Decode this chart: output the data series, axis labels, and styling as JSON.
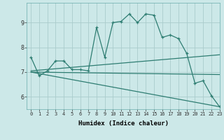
{
  "title": "",
  "xlabel": "Humidex (Indice chaleur)",
  "bg_color": "#cce8e8",
  "line_color": "#2e7d72",
  "grid_color": "#aacccc",
  "xlim": [
    -0.5,
    23
  ],
  "ylim": [
    5.5,
    9.8
  ],
  "xticks": [
    0,
    1,
    2,
    3,
    4,
    5,
    6,
    7,
    8,
    9,
    10,
    11,
    12,
    13,
    14,
    15,
    16,
    17,
    18,
    19,
    20,
    21,
    22,
    23
  ],
  "yticks": [
    6,
    7,
    8,
    9
  ],
  "line1_x": [
    0,
    1,
    2,
    3,
    4,
    5,
    6,
    7,
    8,
    9,
    10,
    11,
    12,
    13,
    14,
    15,
    16,
    17,
    18,
    19,
    20,
    21,
    22,
    23
  ],
  "line1_y": [
    7.6,
    6.85,
    7.05,
    7.45,
    7.45,
    7.1,
    7.1,
    7.05,
    8.8,
    7.6,
    9.0,
    9.05,
    9.35,
    9.0,
    9.35,
    9.3,
    8.4,
    8.5,
    8.35,
    7.75,
    6.55,
    6.65,
    6.05,
    5.6
  ],
  "line2_x": [
    0,
    23
  ],
  "line2_y": [
    7.05,
    7.7
  ],
  "line3_x": [
    0,
    23
  ],
  "line3_y": [
    7.0,
    6.9
  ],
  "line4_x": [
    0,
    23
  ],
  "line4_y": [
    7.0,
    5.6
  ]
}
